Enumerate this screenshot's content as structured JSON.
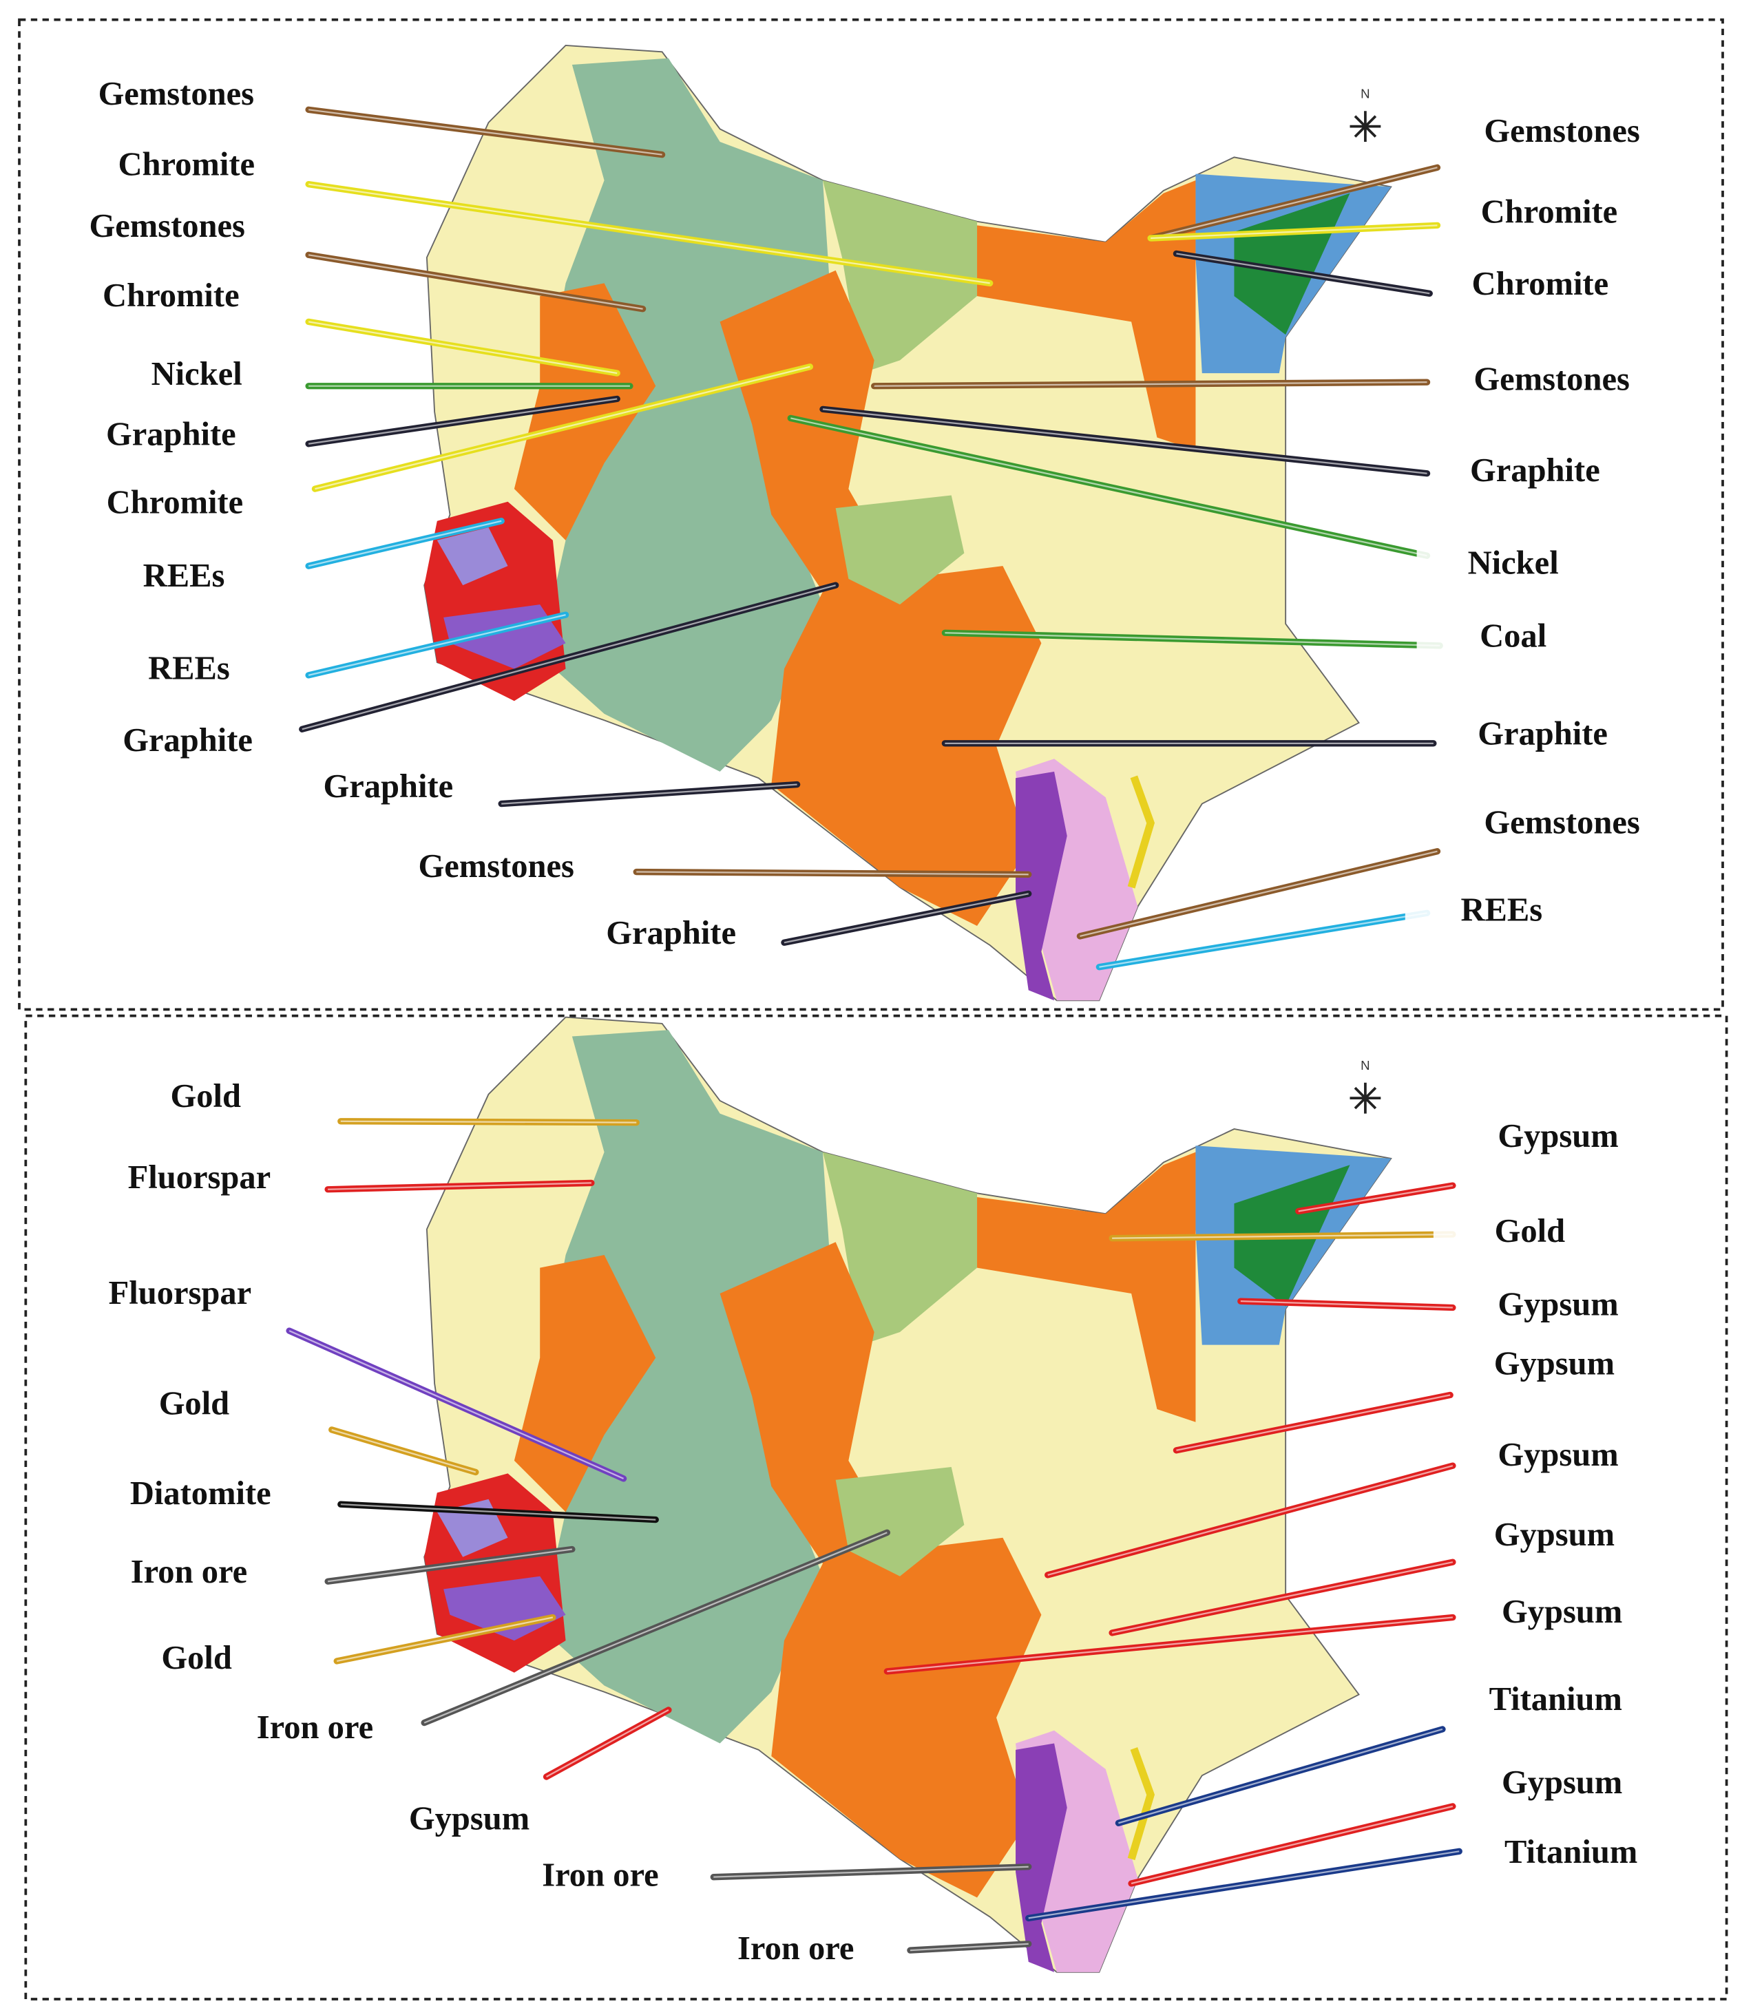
{
  "north_label": "N",
  "panels": [
    {
      "labels": [
        {
          "text": "Gemstones",
          "color": "#8b5a2b"
        },
        {
          "text": "Chromite",
          "color": "#e6df1e"
        },
        {
          "text": "Gemstones",
          "color": "#8b5a2b"
        },
        {
          "text": "Chromite",
          "color": "#e6df1e"
        },
        {
          "text": "Nickel",
          "color": "#3a9a30"
        },
        {
          "text": "Graphite",
          "color": "#222233"
        },
        {
          "text": "Chromite",
          "color": "#e6df1e"
        },
        {
          "text": "REEs",
          "color": "#22b0e0"
        },
        {
          "text": "REEs",
          "color": "#22b0e0"
        },
        {
          "text": "Graphite",
          "color": "#222233"
        },
        {
          "text": "Graphite",
          "color": "#222233"
        },
        {
          "text": "Gemstones",
          "color": "#8b5a2b"
        },
        {
          "text": "Graphite",
          "color": "#222233"
        },
        {
          "text": "Gemstones",
          "color": "#8b5a2b"
        },
        {
          "text": "Chromite",
          "color": "#e6df1e"
        },
        {
          "text": "Chromite",
          "color": "#222233"
        },
        {
          "text": "Gemstones",
          "color": "#8b5a2b"
        },
        {
          "text": "Graphite",
          "color": "#222233"
        },
        {
          "text": "Nickel",
          "color": "#3a9a30"
        },
        {
          "text": "Coal",
          "color": "#3a9a30"
        },
        {
          "text": "Graphite",
          "color": "#222233"
        },
        {
          "text": "Gemstones",
          "color": "#8b5a2b"
        },
        {
          "text": "REEs",
          "color": "#22b0e0"
        }
      ]
    },
    {
      "labels": [
        {
          "text": "Gold",
          "color": "#d4a020"
        },
        {
          "text": "Fluorspar",
          "color": "#e02020"
        },
        {
          "text": "Fluorspar",
          "color": "#7040c0"
        },
        {
          "text": "Gold",
          "color": "#d4a020"
        },
        {
          "text": "Diatomite",
          "color": "#111111"
        },
        {
          "text": "Iron ore",
          "color": "#555555"
        },
        {
          "text": "Gold",
          "color": "#d4a020"
        },
        {
          "text": "Iron ore",
          "color": "#555555"
        },
        {
          "text": "Gypsum",
          "color": "#e02020"
        },
        {
          "text": "Iron ore",
          "color": "#555555"
        },
        {
          "text": "Iron ore",
          "color": "#555555"
        },
        {
          "text": "Gypsum",
          "color": "#e02020"
        },
        {
          "text": "Gold",
          "color": "#d4a020"
        },
        {
          "text": "Gypsum",
          "color": "#e02020"
        },
        {
          "text": "Gypsum",
          "color": "#e02020"
        },
        {
          "text": "Gypsum",
          "color": "#e02020"
        },
        {
          "text": "Gypsum",
          "color": "#e02020"
        },
        {
          "text": "Gypsum",
          "color": "#e02020"
        },
        {
          "text": "Titanium",
          "color": "#1a3a8a"
        },
        {
          "text": "Gypsum",
          "color": "#e02020"
        },
        {
          "text": "Titanium",
          "color": "#1a3a8a"
        }
      ]
    }
  ]
}
